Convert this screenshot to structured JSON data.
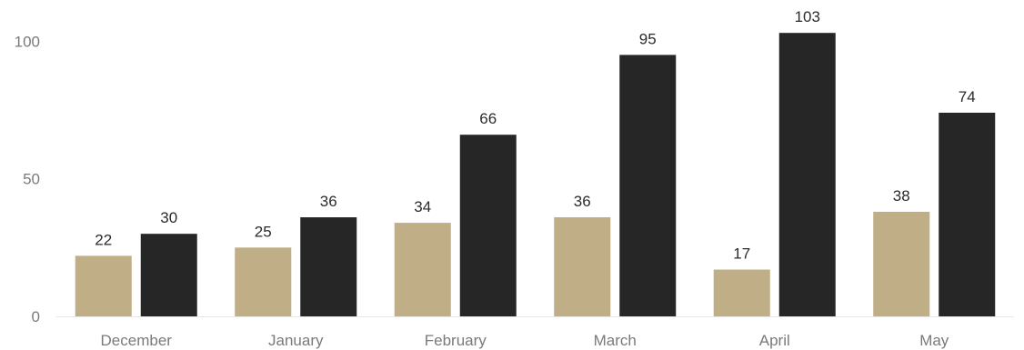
{
  "chart_data": {
    "type": "bar",
    "categories": [
      "December",
      "January",
      "February",
      "March",
      "April",
      "May"
    ],
    "series": [
      {
        "values": [
          22,
          25,
          34,
          36,
          17,
          38
        ],
        "color": "#bfae86"
      },
      {
        "values": [
          30,
          36,
          66,
          95,
          103,
          74
        ],
        "color": "#262626"
      }
    ],
    "ylim": [
      0,
      110
    ],
    "yticks": [
      0,
      50,
      100
    ],
    "grid": false,
    "legend": "none",
    "data_labels": true
  }
}
